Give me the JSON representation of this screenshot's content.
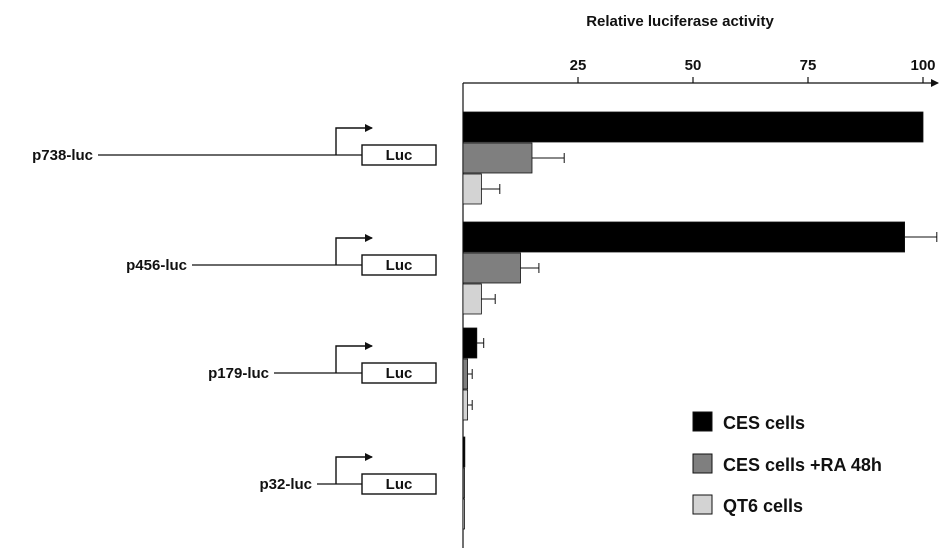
{
  "chart_data": {
    "type": "bar",
    "orientation": "horizontal",
    "xlabel": "Relative luciferase activity",
    "xaxis_position": "top",
    "xlim": [
      0,
      100
    ],
    "xticks": [
      25,
      50,
      75,
      100
    ],
    "grid": false,
    "legend_position": "bottom-right",
    "categories": [
      "p738-luc",
      "p456-luc",
      "p179-luc",
      "p32-luc"
    ],
    "construct_box_label": "Luc",
    "series": [
      {
        "name": "CES cells",
        "color": "#000000",
        "values": [
          100,
          96,
          3,
          0.4
        ],
        "errors": [
          0,
          7,
          1.5,
          0
        ]
      },
      {
        "name": "CES cells +RA 48h",
        "color": "#7f7f7f",
        "values": [
          15,
          12.5,
          1,
          0.3
        ],
        "errors": [
          7,
          4,
          1,
          0
        ]
      },
      {
        "name": "QT6 cells",
        "color": "#d3d3d3",
        "values": [
          4,
          4,
          1,
          0.3
        ],
        "errors": [
          4,
          3,
          1,
          0
        ]
      }
    ]
  }
}
